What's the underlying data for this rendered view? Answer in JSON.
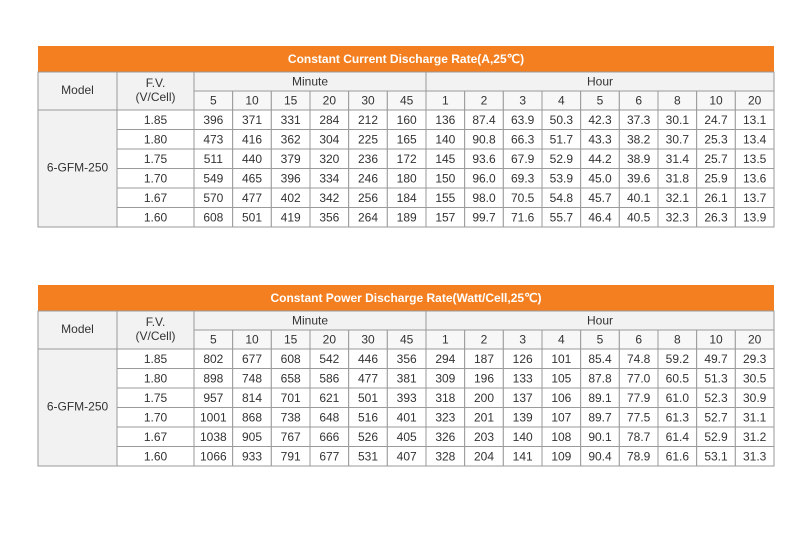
{
  "tables": [
    {
      "title": "Constant Current Discharge Rate(A,25℃)",
      "header": {
        "model": "Model",
        "fv": [
          "F.V.",
          "(V/Cell)"
        ],
        "minute": "Minute",
        "hour": "Hour",
        "minute_cols": [
          "5",
          "10",
          "15",
          "20",
          "30",
          "45"
        ],
        "hour_cols": [
          "1",
          "2",
          "3",
          "4",
          "5",
          "6",
          "8",
          "10",
          "20"
        ]
      },
      "model_name": "6-GFM-250",
      "rows": [
        {
          "fv": "1.85",
          "values": [
            "396",
            "371",
            "331",
            "284",
            "212",
            "160",
            "136",
            "87.4",
            "63.9",
            "50.3",
            "42.3",
            "37.3",
            "30.1",
            "24.7",
            "13.1"
          ]
        },
        {
          "fv": "1.80",
          "values": [
            "473",
            "416",
            "362",
            "304",
            "225",
            "165",
            "140",
            "90.8",
            "66.3",
            "51.7",
            "43.3",
            "38.2",
            "30.7",
            "25.3",
            "13.4"
          ]
        },
        {
          "fv": "1.75",
          "values": [
            "511",
            "440",
            "379",
            "320",
            "236",
            "172",
            "145",
            "93.6",
            "67.9",
            "52.9",
            "44.2",
            "38.9",
            "31.4",
            "25.7",
            "13.5"
          ]
        },
        {
          "fv": "1.70",
          "values": [
            "549",
            "465",
            "396",
            "334",
            "246",
            "180",
            "150",
            "96.0",
            "69.3",
            "53.9",
            "45.0",
            "39.6",
            "31.8",
            "25.9",
            "13.6"
          ]
        },
        {
          "fv": "1.67",
          "values": [
            "570",
            "477",
            "402",
            "342",
            "256",
            "184",
            "155",
            "98.0",
            "70.5",
            "54.8",
            "45.7",
            "40.1",
            "32.1",
            "26.1",
            "13.7"
          ]
        },
        {
          "fv": "1.60",
          "values": [
            "608",
            "501",
            "419",
            "356",
            "264",
            "189",
            "157",
            "99.7",
            "71.6",
            "55.7",
            "46.4",
            "40.5",
            "32.3",
            "26.3",
            "13.9"
          ]
        }
      ]
    },
    {
      "title": "Constant Power Discharge Rate(Watt/Cell,25℃)",
      "header": {
        "model": "Model",
        "fv": [
          "F.V.",
          "(V/Cell)"
        ],
        "minute": "Minute",
        "hour": "Hour",
        "minute_cols": [
          "5",
          "10",
          "15",
          "20",
          "30",
          "45"
        ],
        "hour_cols": [
          "1",
          "2",
          "3",
          "4",
          "5",
          "6",
          "8",
          "10",
          "20"
        ]
      },
      "model_name": "6-GFM-250",
      "rows": [
        {
          "fv": "1.85",
          "values": [
            "802",
            "677",
            "608",
            "542",
            "446",
            "356",
            "294",
            "187",
            "126",
            "101",
            "85.4",
            "74.8",
            "59.2",
            "49.7",
            "29.3"
          ]
        },
        {
          "fv": "1.80",
          "values": [
            "898",
            "748",
            "658",
            "586",
            "477",
            "381",
            "309",
            "196",
            "133",
            "105",
            "87.8",
            "77.0",
            "60.5",
            "51.3",
            "30.5"
          ]
        },
        {
          "fv": "1.75",
          "values": [
            "957",
            "814",
            "701",
            "621",
            "501",
            "393",
            "318",
            "200",
            "137",
            "106",
            "89.1",
            "77.9",
            "61.0",
            "52.3",
            "30.9"
          ]
        },
        {
          "fv": "1.70",
          "values": [
            "1001",
            "868",
            "738",
            "648",
            "516",
            "401",
            "323",
            "201",
            "139",
            "107",
            "89.7",
            "77.5",
            "61.3",
            "52.7",
            "31.1"
          ]
        },
        {
          "fv": "1.67",
          "values": [
            "1038",
            "905",
            "767",
            "666",
            "526",
            "405",
            "326",
            "203",
            "140",
            "108",
            "90.1",
            "78.7",
            "61.4",
            "52.9",
            "31.2"
          ]
        },
        {
          "fv": "1.60",
          "values": [
            "1066",
            "933",
            "791",
            "677",
            "531",
            "407",
            "328",
            "204",
            "141",
            "109",
            "90.4",
            "78.9",
            "61.6",
            "53.1",
            "31.3"
          ]
        }
      ]
    }
  ]
}
